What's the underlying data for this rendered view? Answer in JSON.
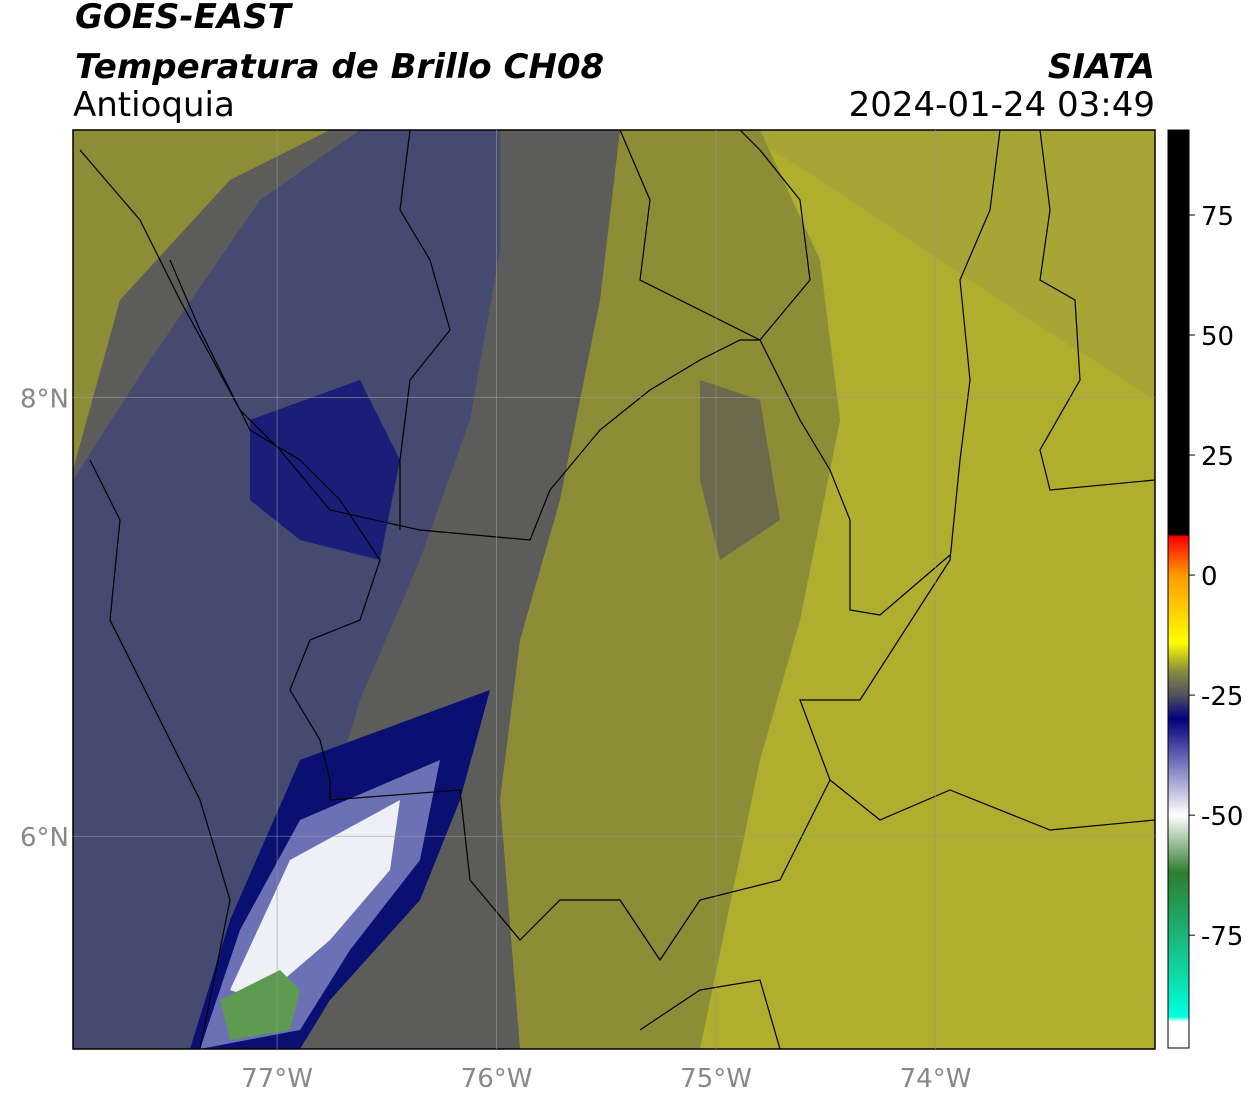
{
  "header": {
    "title": "GOES-EAST",
    "subtitle": "Temperatura de Brillo CH08",
    "region": "Antioquia",
    "source": "SIATA",
    "datetime": "2024-01-24 03:49"
  },
  "map": {
    "xlim": [
      -77.93,
      -73.0
    ],
    "ylim": [
      5.03,
      9.22
    ],
    "xticks": [
      {
        "value": -77,
        "label": "77°W"
      },
      {
        "value": -76,
        "label": "76°W"
      },
      {
        "value": -75,
        "label": "75°W"
      },
      {
        "value": -74,
        "label": "74°W"
      }
    ],
    "yticks": [
      {
        "value": 8,
        "label": "8°N"
      },
      {
        "value": 6,
        "label": "6°N"
      }
    ],
    "grid": true
  },
  "colorbar": {
    "lim": [
      -98.5,
      92.7
    ],
    "ticks": [
      75,
      50,
      25,
      0,
      -25,
      -50,
      -75
    ],
    "stops": [
      {
        "value": 92.7,
        "color": "#000000"
      },
      {
        "value": 8.5,
        "color": "#000000"
      },
      {
        "value": 8,
        "color": "#ff0000"
      },
      {
        "value": 0,
        "color": "#ff9900"
      },
      {
        "value": -14,
        "color": "#ffff00"
      },
      {
        "value": -20,
        "color": "#8a8a40"
      },
      {
        "value": -25,
        "color": "#505060"
      },
      {
        "value": -30,
        "color": "#00007f"
      },
      {
        "value": -50,
        "color": "#ffffff"
      },
      {
        "value": -62,
        "color": "#2e7d2e"
      },
      {
        "value": -92,
        "color": "#00ffdd"
      },
      {
        "value": -93,
        "color": "#ffffff"
      },
      {
        "value": -98.5,
        "color": "#ffffff"
      }
    ]
  }
}
